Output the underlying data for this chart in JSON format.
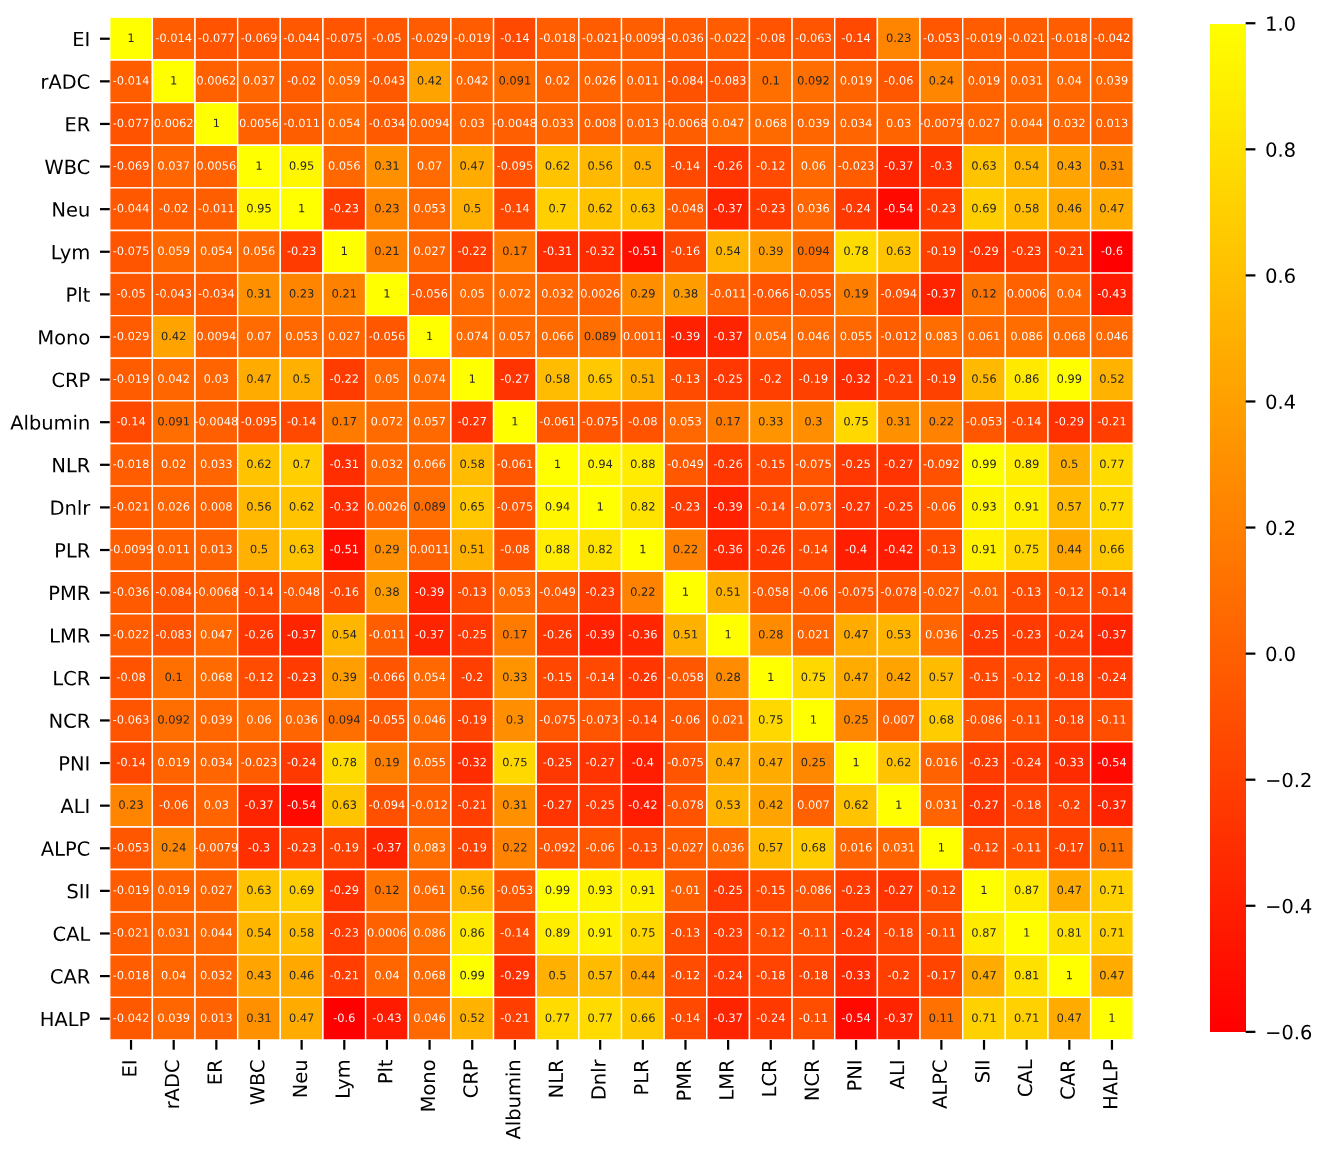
{
  "chart_data": {
    "type": "heatmap",
    "categories": [
      "EI",
      "rADC",
      "ER",
      "WBC",
      "Neu",
      "Lym",
      "Plt",
      "Mono",
      "CRP",
      "Albumin",
      "NLR",
      "Dnlr",
      "PLR",
      "PMR",
      "LMR",
      "LCR",
      "NCR",
      "PNI",
      "ALI",
      "ALPC",
      "SII",
      "CAL",
      "CAR",
      "HALP"
    ],
    "y_categories": [
      "EI",
      "rADC",
      "ER",
      "WBC",
      "Neu",
      "Lym",
      "Plt",
      "Mono",
      "CRP",
      "Albumin",
      "NLR",
      "Dnlr",
      "PLR",
      "PMR",
      "LMR",
      "LCR",
      "NCR",
      "PNI",
      "ALI",
      "ALPC",
      "SII",
      "CAL",
      "CAR",
      "HALP"
    ],
    "cells": [
      [
        1,
        -0.014,
        -0.077,
        -0.069,
        -0.044,
        -0.075,
        -0.05,
        -0.029,
        -0.019,
        -0.14,
        -0.018,
        -0.021,
        -0.0099,
        -0.036,
        -0.022,
        -0.08,
        -0.063,
        -0.14,
        0.23,
        -0.053,
        -0.019,
        -0.021,
        -0.018,
        -0.042
      ],
      [
        -0.014,
        1,
        0.0062,
        0.037,
        -0.02,
        0.059,
        -0.043,
        0.42,
        0.042,
        0.091,
        0.02,
        0.026,
        0.011,
        -0.084,
        -0.083,
        0.1,
        0.092,
        0.019,
        -0.06,
        0.24,
        0.019,
        0.031,
        0.04,
        0.039
      ],
      [
        -0.077,
        0.0062,
        1,
        0.0056,
        -0.011,
        0.054,
        -0.034,
        0.0094,
        0.03,
        -0.0048,
        0.033,
        0.008,
        0.013,
        -0.0068,
        0.047,
        0.068,
        0.039,
        0.034,
        0.03,
        -0.0079,
        0.027,
        0.044,
        0.032,
        0.013
      ],
      [
        -0.069,
        0.037,
        0.0056,
        1,
        0.95,
        0.056,
        0.31,
        0.07,
        0.47,
        -0.095,
        0.62,
        0.56,
        0.5,
        -0.14,
        -0.26,
        -0.12,
        0.06,
        -0.023,
        -0.37,
        -0.3,
        0.63,
        0.54,
        0.43,
        0.31
      ],
      [
        -0.044,
        -0.02,
        -0.011,
        0.95,
        1,
        -0.23,
        0.23,
        0.053,
        0.5,
        -0.14,
        0.7,
        0.62,
        0.63,
        -0.048,
        -0.37,
        -0.23,
        0.036,
        -0.24,
        -0.54,
        -0.23,
        0.69,
        0.58,
        0.46,
        0.47
      ],
      [
        -0.075,
        0.059,
        0.054,
        0.056,
        -0.23,
        1,
        0.21,
        0.027,
        -0.22,
        0.17,
        -0.31,
        -0.32,
        -0.51,
        -0.16,
        0.54,
        0.39,
        0.094,
        0.78,
        0.63,
        -0.19,
        -0.29,
        -0.23,
        -0.21,
        -0.6
      ],
      [
        -0.05,
        -0.043,
        -0.034,
        0.31,
        0.23,
        0.21,
        1,
        -0.056,
        0.05,
        0.072,
        0.032,
        0.0026,
        0.29,
        0.38,
        -0.011,
        -0.066,
        -0.055,
        0.19,
        -0.094,
        -0.37,
        0.12,
        0.0006,
        0.04,
        -0.43
      ],
      [
        -0.029,
        0.42,
        0.0094,
        0.07,
        0.053,
        0.027,
        -0.056,
        1,
        0.074,
        0.057,
        0.066,
        0.089,
        0.0011,
        -0.39,
        -0.37,
        0.054,
        0.046,
        0.055,
        -0.012,
        0.083,
        0.061,
        0.086,
        0.068,
        0.046
      ],
      [
        -0.019,
        0.042,
        0.03,
        0.47,
        0.5,
        -0.22,
        0.05,
        0.074,
        1,
        -0.27,
        0.58,
        0.65,
        0.51,
        -0.13,
        -0.25,
        -0.2,
        -0.19,
        -0.32,
        -0.21,
        -0.19,
        0.56,
        0.86,
        0.99,
        0.52
      ],
      [
        -0.14,
        0.091,
        -0.0048,
        -0.095,
        -0.14,
        0.17,
        0.072,
        0.057,
        -0.27,
        1,
        -0.061,
        -0.075,
        -0.08,
        0.053,
        0.17,
        0.33,
        0.3,
        0.75,
        0.31,
        0.22,
        -0.053,
        -0.14,
        -0.29,
        -0.21
      ],
      [
        -0.018,
        0.02,
        0.033,
        0.62,
        0.7,
        -0.31,
        0.032,
        0.066,
        0.58,
        -0.061,
        1,
        0.94,
        0.88,
        -0.049,
        -0.26,
        -0.15,
        -0.075,
        -0.25,
        -0.27,
        -0.092,
        0.99,
        0.89,
        0.5,
        0.77
      ],
      [
        -0.021,
        0.026,
        0.008,
        0.56,
        0.62,
        -0.32,
        0.0026,
        0.089,
        0.65,
        -0.075,
        0.94,
        1,
        0.82,
        -0.23,
        -0.39,
        -0.14,
        -0.073,
        -0.27,
        -0.25,
        -0.06,
        0.93,
        0.91,
        0.57,
        0.77
      ],
      [
        -0.0099,
        0.011,
        0.013,
        0.5,
        0.63,
        -0.51,
        0.29,
        0.0011,
        0.51,
        -0.08,
        0.88,
        0.82,
        1,
        0.22,
        -0.36,
        -0.26,
        -0.14,
        -0.4,
        -0.42,
        -0.13,
        0.91,
        0.75,
        0.44,
        0.66
      ],
      [
        -0.036,
        -0.084,
        -0.0068,
        -0.14,
        -0.048,
        -0.16,
        0.38,
        -0.39,
        -0.13,
        0.053,
        -0.049,
        -0.23,
        0.22,
        1,
        0.51,
        -0.058,
        -0.06,
        -0.075,
        -0.078,
        -0.027,
        -0.01,
        -0.13,
        -0.12,
        -0.14
      ],
      [
        -0.022,
        -0.083,
        0.047,
        -0.26,
        -0.37,
        0.54,
        -0.011,
        -0.37,
        -0.25,
        0.17,
        -0.26,
        -0.39,
        -0.36,
        0.51,
        1,
        0.28,
        0.021,
        0.47,
        0.53,
        0.036,
        -0.25,
        -0.23,
        -0.24,
        -0.37
      ],
      [
        -0.08,
        0.1,
        0.068,
        -0.12,
        -0.23,
        0.39,
        -0.066,
        0.054,
        -0.2,
        0.33,
        -0.15,
        -0.14,
        -0.26,
        -0.058,
        0.28,
        1,
        0.75,
        0.47,
        0.42,
        0.57,
        -0.15,
        -0.12,
        -0.18,
        -0.24
      ],
      [
        -0.063,
        0.092,
        0.039,
        0.06,
        0.036,
        0.094,
        -0.055,
        0.046,
        -0.19,
        0.3,
        -0.075,
        -0.073,
        -0.14,
        -0.06,
        0.021,
        0.75,
        1,
        0.25,
        0.007,
        0.68,
        -0.086,
        -0.11,
        -0.18,
        -0.11
      ],
      [
        -0.14,
        0.019,
        0.034,
        -0.023,
        -0.24,
        0.78,
        0.19,
        0.055,
        -0.32,
        0.75,
        -0.25,
        -0.27,
        -0.4,
        -0.075,
        0.47,
        0.47,
        0.25,
        1,
        0.62,
        0.016,
        -0.23,
        -0.24,
        -0.33,
        -0.54
      ],
      [
        0.23,
        -0.06,
        0.03,
        -0.37,
        -0.54,
        0.63,
        -0.094,
        -0.012,
        -0.21,
        0.31,
        -0.27,
        -0.25,
        -0.42,
        -0.078,
        0.53,
        0.42,
        0.007,
        0.62,
        1,
        0.031,
        -0.27,
        -0.18,
        -0.2,
        -0.37
      ],
      [
        -0.053,
        0.24,
        -0.0079,
        -0.3,
        -0.23,
        -0.19,
        -0.37,
        0.083,
        -0.19,
        0.22,
        -0.092,
        -0.06,
        -0.13,
        -0.027,
        0.036,
        0.57,
        0.68,
        0.016,
        0.031,
        1,
        -0.12,
        -0.11,
        -0.17,
        0.11
      ],
      [
        -0.019,
        0.019,
        0.027,
        0.63,
        0.69,
        -0.29,
        0.12,
        0.061,
        0.56,
        -0.053,
        0.99,
        0.93,
        0.91,
        -0.01,
        -0.25,
        -0.15,
        -0.086,
        -0.23,
        -0.27,
        -0.12,
        1,
        0.87,
        0.47,
        0.71
      ],
      [
        -0.021,
        0.031,
        0.044,
        0.54,
        0.58,
        -0.23,
        0.0006,
        0.086,
        0.86,
        -0.14,
        0.89,
        0.91,
        0.75,
        -0.13,
        -0.23,
        -0.12,
        -0.11,
        -0.24,
        -0.18,
        -0.11,
        0.87,
        1,
        0.81,
        0.71
      ],
      [
        -0.018,
        0.04,
        0.032,
        0.43,
        0.46,
        -0.21,
        0.04,
        0.068,
        0.99,
        -0.29,
        0.5,
        0.57,
        0.44,
        -0.12,
        -0.24,
        -0.18,
        -0.18,
        -0.33,
        -0.2,
        -0.17,
        0.47,
        0.81,
        1,
        0.47
      ],
      [
        -0.042,
        0.039,
        0.013,
        0.31,
        0.47,
        -0.6,
        -0.43,
        0.046,
        0.52,
        -0.21,
        0.77,
        0.77,
        0.66,
        -0.14,
        -0.37,
        -0.24,
        -0.11,
        -0.54,
        -0.37,
        0.11,
        0.71,
        0.71,
        0.47,
        1
      ]
    ],
    "data_labels": true,
    "colors": [
      "#ff0000",
      "#ffff00"
    ],
    "clim": [
      -0.6,
      1.0
    ],
    "cticks": [
      {
        "value": -0.6,
        "label": "−0.6"
      },
      {
        "value": -0.4,
        "label": "−0.4"
      },
      {
        "value": -0.2,
        "label": "−0.2"
      },
      {
        "value": 0.0,
        "label": "0.0"
      },
      {
        "value": 0.2,
        "label": "0.2"
      },
      {
        "value": 0.4,
        "label": "0.4"
      },
      {
        "value": 0.6,
        "label": "0.6"
      },
      {
        "value": 0.8,
        "label": "0.8"
      },
      {
        "value": 1.0,
        "label": "1.0"
      }
    ]
  }
}
